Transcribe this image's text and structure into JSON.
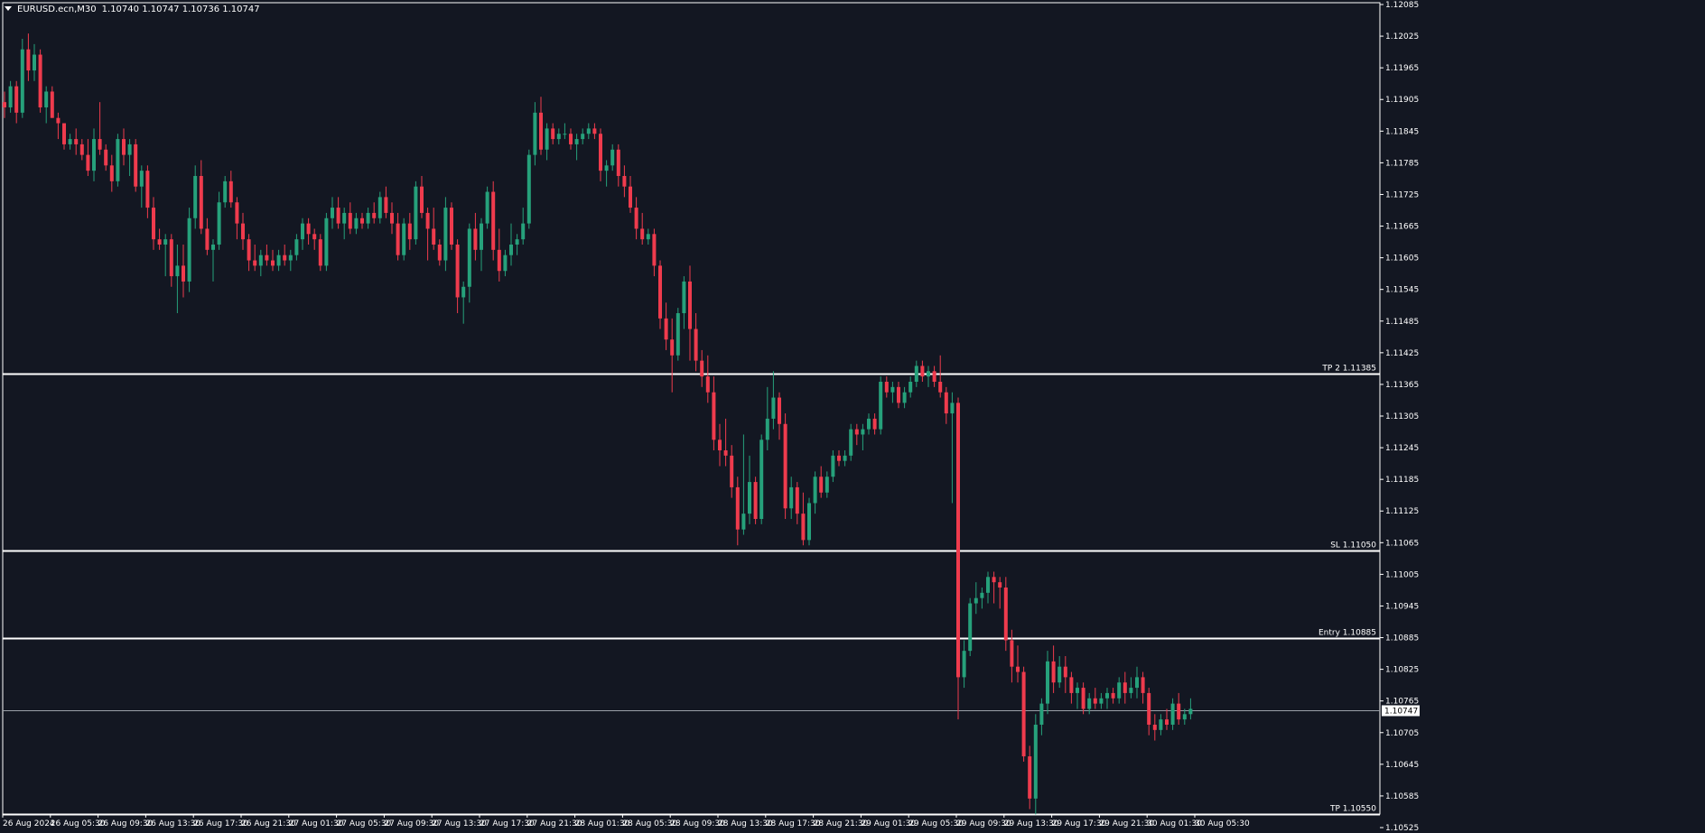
{
  "header": {
    "symbol": "EURUSD.ecn,M30",
    "ohlc": "1.10740 1.10747 1.10736 1.10747"
  },
  "colors": {
    "background": "#131722",
    "bull": "#26a17b",
    "bear": "#ef3b4d",
    "level_line": "#ffffff",
    "axis_text": "#ffffff",
    "price_tag_bg": "#ffffff",
    "price_tag_text": "#000000"
  },
  "chart_data": {
    "type": "candlestick",
    "title": "EURUSD.ecn,M30",
    "ylim": [
      1.10525,
      1.12085
    ],
    "y_ticks": [
      "1.12085",
      "1.12025",
      "1.11965",
      "1.11905",
      "1.11845",
      "1.11785",
      "1.11725",
      "1.11665",
      "1.11605",
      "1.11545",
      "1.11485",
      "1.11425",
      "1.11365",
      "1.11305",
      "1.11245",
      "1.11185",
      "1.11125",
      "1.11065",
      "1.11005",
      "1.10945",
      "1.10885",
      "1.10825",
      "1.10765",
      "1.10705",
      "1.10645",
      "1.10585",
      "1.10525"
    ],
    "x_ticks": [
      {
        "label": "26 Aug 2024",
        "bar": 0
      },
      {
        "label": "26 Aug 05:30",
        "bar": 8
      },
      {
        "label": "26 Aug 09:30",
        "bar": 16
      },
      {
        "label": "26 Aug 13:30",
        "bar": 24
      },
      {
        "label": "26 Aug 17:30",
        "bar": 32
      },
      {
        "label": "26 Aug 21:30",
        "bar": 40
      },
      {
        "label": "27 Aug 01:30",
        "bar": 48
      },
      {
        "label": "27 Aug 05:30",
        "bar": 56
      },
      {
        "label": "27 Aug 09:30",
        "bar": 64
      },
      {
        "label": "27 Aug 13:30",
        "bar": 72
      },
      {
        "label": "27 Aug 17:30",
        "bar": 80
      },
      {
        "label": "27 Aug 21:30",
        "bar": 88
      },
      {
        "label": "28 Aug 01:30",
        "bar": 96
      },
      {
        "label": "28 Aug 05:30",
        "bar": 104
      },
      {
        "label": "28 Aug 09:30",
        "bar": 112
      },
      {
        "label": "28 Aug 13:30",
        "bar": 120
      },
      {
        "label": "28 Aug 17:30",
        "bar": 128
      },
      {
        "label": "28 Aug 21:30",
        "bar": 136
      },
      {
        "label": "29 Aug 01:30",
        "bar": 144
      },
      {
        "label": "29 Aug 05:30",
        "bar": 152
      },
      {
        "label": "29 Aug 09:30",
        "bar": 160
      },
      {
        "label": "29 Aug 13:30",
        "bar": 168
      },
      {
        "label": "29 Aug 17:30",
        "bar": 176
      },
      {
        "label": "29 Aug 21:30",
        "bar": 184
      },
      {
        "label": "30 Aug 01:30",
        "bar": 192
      },
      {
        "label": "30 Aug 05:30",
        "bar": 200
      }
    ],
    "levels": [
      {
        "label": "TP 2 1.11385",
        "price": 1.11385
      },
      {
        "label": "SL 1.11050",
        "price": 1.1105
      },
      {
        "label": "Entry 1.10885",
        "price": 1.10885
      },
      {
        "label": "TP 1.10550",
        "price": 1.1055
      }
    ],
    "current_price": {
      "label": "1.10747",
      "price": 1.10747
    },
    "candles": [
      [
        1.119,
        1.1192,
        1.1187,
        1.1189
      ],
      [
        1.1189,
        1.1194,
        1.1188,
        1.1193
      ],
      [
        1.1193,
        1.1194,
        1.1186,
        1.1188
      ],
      [
        1.1188,
        1.1202,
        1.1187,
        1.12
      ],
      [
        1.12,
        1.1203,
        1.1194,
        1.1196
      ],
      [
        1.1196,
        1.1201,
        1.1194,
        1.1199
      ],
      [
        1.1199,
        1.12,
        1.1188,
        1.1189
      ],
      [
        1.1189,
        1.1193,
        1.1186,
        1.1192
      ],
      [
        1.1192,
        1.1193,
        1.1187,
        1.1187
      ],
      [
        1.1187,
        1.1188,
        1.1183,
        1.1186
      ],
      [
        1.1186,
        1.1186,
        1.1181,
        1.1182
      ],
      [
        1.1182,
        1.1184,
        1.1181,
        1.1183
      ],
      [
        1.1183,
        1.1185,
        1.118,
        1.1182
      ],
      [
        1.1182,
        1.1183,
        1.1179,
        1.118
      ],
      [
        1.118,
        1.1183,
        1.1176,
        1.1177
      ],
      [
        1.1177,
        1.1185,
        1.1175,
        1.1183
      ],
      [
        1.1183,
        1.119,
        1.118,
        1.1181
      ],
      [
        1.1181,
        1.1182,
        1.1177,
        1.1178
      ],
      [
        1.1178,
        1.118,
        1.1173,
        1.1175
      ],
      [
        1.1175,
        1.1184,
        1.1174,
        1.1183
      ],
      [
        1.1183,
        1.1185,
        1.1178,
        1.118
      ],
      [
        1.118,
        1.1183,
        1.1176,
        1.1182
      ],
      [
        1.1182,
        1.1183,
        1.1173,
        1.1174
      ],
      [
        1.1174,
        1.1178,
        1.117,
        1.1177
      ],
      [
        1.1177,
        1.1178,
        1.1168,
        1.117
      ],
      [
        1.117,
        1.1172,
        1.1162,
        1.1164
      ],
      [
        1.1164,
        1.1166,
        1.1162,
        1.1163
      ],
      [
        1.1163,
        1.1165,
        1.1157,
        1.1164
      ],
      [
        1.1164,
        1.1165,
        1.1155,
        1.1157
      ],
      [
        1.1157,
        1.1163,
        1.115,
        1.1159
      ],
      [
        1.1159,
        1.1163,
        1.1153,
        1.1156
      ],
      [
        1.1156,
        1.117,
        1.1154,
        1.1168
      ],
      [
        1.1168,
        1.1178,
        1.1166,
        1.1176
      ],
      [
        1.1176,
        1.1179,
        1.1165,
        1.1166
      ],
      [
        1.1166,
        1.1168,
        1.1161,
        1.1162
      ],
      [
        1.1162,
        1.1164,
        1.1156,
        1.1163
      ],
      [
        1.1163,
        1.1173,
        1.1162,
        1.1171
      ],
      [
        1.1171,
        1.1176,
        1.117,
        1.1175
      ],
      [
        1.1175,
        1.1177,
        1.117,
        1.1171
      ],
      [
        1.1171,
        1.1172,
        1.1164,
        1.1167
      ],
      [
        1.1167,
        1.1169,
        1.1162,
        1.1164
      ],
      [
        1.1164,
        1.1165,
        1.1158,
        1.116
      ],
      [
        1.116,
        1.1163,
        1.1158,
        1.1159
      ],
      [
        1.1159,
        1.1162,
        1.1157,
        1.1161
      ],
      [
        1.1161,
        1.1163,
        1.1159,
        1.116
      ],
      [
        1.116,
        1.1162,
        1.1158,
        1.1159
      ],
      [
        1.1159,
        1.1162,
        1.1158,
        1.1161
      ],
      [
        1.1161,
        1.1163,
        1.1159,
        1.116
      ],
      [
        1.116,
        1.1162,
        1.1158,
        1.1161
      ],
      [
        1.1161,
        1.1165,
        1.116,
        1.1164
      ],
      [
        1.1164,
        1.1168,
        1.1162,
        1.1167
      ],
      [
        1.1167,
        1.1168,
        1.1163,
        1.1165
      ],
      [
        1.1165,
        1.1166,
        1.1162,
        1.1164
      ],
      [
        1.1164,
        1.1165,
        1.1158,
        1.1159
      ],
      [
        1.1159,
        1.1169,
        1.1158,
        1.1168
      ],
      [
        1.1168,
        1.1172,
        1.1166,
        1.117
      ],
      [
        1.117,
        1.1172,
        1.1166,
        1.1167
      ],
      [
        1.1167,
        1.117,
        1.1164,
        1.1169
      ],
      [
        1.1169,
        1.1171,
        1.1165,
        1.1166
      ],
      [
        1.1166,
        1.1169,
        1.1165,
        1.1168
      ],
      [
        1.1168,
        1.1169,
        1.1166,
        1.1167
      ],
      [
        1.1167,
        1.117,
        1.1166,
        1.1169
      ],
      [
        1.1169,
        1.1171,
        1.1167,
        1.1168
      ],
      [
        1.1168,
        1.1173,
        1.1167,
        1.1172
      ],
      [
        1.1172,
        1.1174,
        1.1168,
        1.1169
      ],
      [
        1.1169,
        1.1171,
        1.1165,
        1.1167
      ],
      [
        1.1167,
        1.1169,
        1.116,
        1.1161
      ],
      [
        1.1161,
        1.1168,
        1.116,
        1.1167
      ],
      [
        1.1167,
        1.1169,
        1.1162,
        1.1164
      ],
      [
        1.1164,
        1.1175,
        1.1163,
        1.1174
      ],
      [
        1.1174,
        1.1176,
        1.1168,
        1.1169
      ],
      [
        1.1169,
        1.117,
        1.116,
        1.1166
      ],
      [
        1.1166,
        1.117,
        1.1162,
        1.1163
      ],
      [
        1.1163,
        1.1164,
        1.1159,
        1.116
      ],
      [
        1.116,
        1.1172,
        1.1158,
        1.117
      ],
      [
        1.117,
        1.1171,
        1.1162,
        1.1163
      ],
      [
        1.1163,
        1.1164,
        1.115,
        1.1153
      ],
      [
        1.1153,
        1.1156,
        1.1148,
        1.1155
      ],
      [
        1.1155,
        1.1167,
        1.1152,
        1.1166
      ],
      [
        1.1166,
        1.1169,
        1.116,
        1.1162
      ],
      [
        1.1162,
        1.1168,
        1.1158,
        1.1167
      ],
      [
        1.1167,
        1.1174,
        1.1166,
        1.1173
      ],
      [
        1.1173,
        1.1175,
        1.116,
        1.1162
      ],
      [
        1.1162,
        1.1166,
        1.1156,
        1.1158
      ],
      [
        1.1158,
        1.1162,
        1.1157,
        1.1161
      ],
      [
        1.1161,
        1.1167,
        1.1159,
        1.1163
      ],
      [
        1.1163,
        1.1165,
        1.1161,
        1.1164
      ],
      [
        1.1164,
        1.117,
        1.1163,
        1.1167
      ],
      [
        1.1167,
        1.1181,
        1.1166,
        1.118
      ],
      [
        1.118,
        1.119,
        1.1178,
        1.1188
      ],
      [
        1.1188,
        1.1191,
        1.118,
        1.1181
      ],
      [
        1.1181,
        1.1186,
        1.1179,
        1.1185
      ],
      [
        1.1185,
        1.1186,
        1.1182,
        1.1183
      ],
      [
        1.1183,
        1.1185,
        1.1182,
        1.1184
      ],
      [
        1.1184,
        1.1186,
        1.1183,
        1.1184
      ],
      [
        1.1184,
        1.1185,
        1.1181,
        1.1182
      ],
      [
        1.1182,
        1.1184,
        1.1179,
        1.1183
      ],
      [
        1.1183,
        1.1185,
        1.1182,
        1.1184
      ],
      [
        1.1184,
        1.1186,
        1.1183,
        1.1185
      ],
      [
        1.1185,
        1.1186,
        1.1183,
        1.1184
      ],
      [
        1.1184,
        1.1185,
        1.1175,
        1.1177
      ],
      [
        1.1177,
        1.1179,
        1.1174,
        1.1178
      ],
      [
        1.1178,
        1.1182,
        1.1177,
        1.1181
      ],
      [
        1.1181,
        1.1182,
        1.1174,
        1.1176
      ],
      [
        1.1176,
        1.1178,
        1.1172,
        1.1174
      ],
      [
        1.1174,
        1.1176,
        1.1169,
        1.117
      ],
      [
        1.117,
        1.1172,
        1.1164,
        1.1166
      ],
      [
        1.1166,
        1.1169,
        1.1163,
        1.1164
      ],
      [
        1.1164,
        1.1166,
        1.1163,
        1.1165
      ],
      [
        1.1165,
        1.1166,
        1.1157,
        1.1159
      ],
      [
        1.1159,
        1.116,
        1.1147,
        1.1149
      ],
      [
        1.1149,
        1.1152,
        1.1143,
        1.1145
      ],
      [
        1.1145,
        1.1149,
        1.1135,
        1.1142
      ],
      [
        1.1142,
        1.1151,
        1.1141,
        1.115
      ],
      [
        1.115,
        1.1157,
        1.1147,
        1.1156
      ],
      [
        1.1156,
        1.1159,
        1.1141,
        1.1147
      ],
      [
        1.1147,
        1.115,
        1.1139,
        1.1141
      ],
      [
        1.1141,
        1.1143,
        1.1136,
        1.1138
      ],
      [
        1.1138,
        1.1142,
        1.1133,
        1.1135
      ],
      [
        1.1135,
        1.1138,
        1.1124,
        1.1126
      ],
      [
        1.1126,
        1.1129,
        1.1121,
        1.1124
      ],
      [
        1.1124,
        1.113,
        1.1121,
        1.1123
      ],
      [
        1.1123,
        1.1125,
        1.1115,
        1.1117
      ],
      [
        1.1117,
        1.1119,
        1.1106,
        1.1109
      ],
      [
        1.1109,
        1.1127,
        1.1108,
        1.1112
      ],
      [
        1.1112,
        1.1123,
        1.111,
        1.1118
      ],
      [
        1.1118,
        1.1119,
        1.111,
        1.1111
      ],
      [
        1.1111,
        1.1127,
        1.111,
        1.1126
      ],
      [
        1.1126,
        1.1136,
        1.1124,
        1.113
      ],
      [
        1.113,
        1.1139,
        1.1128,
        1.1134
      ],
      [
        1.1134,
        1.1135,
        1.1126,
        1.1129
      ],
      [
        1.1129,
        1.1131,
        1.1111,
        1.1113
      ],
      [
        1.1113,
        1.1119,
        1.1111,
        1.1117
      ],
      [
        1.1117,
        1.1118,
        1.111,
        1.1112
      ],
      [
        1.1112,
        1.1116,
        1.1106,
        1.1107
      ],
      [
        1.1107,
        1.1115,
        1.1106,
        1.1114
      ],
      [
        1.1114,
        1.112,
        1.1112,
        1.1119
      ],
      [
        1.1119,
        1.1121,
        1.1115,
        1.1116
      ],
      [
        1.1116,
        1.112,
        1.1115,
        1.1119
      ],
      [
        1.1119,
        1.1124,
        1.1118,
        1.1123
      ],
      [
        1.1123,
        1.1124,
        1.1121,
        1.1122
      ],
      [
        1.1122,
        1.1124,
        1.1121,
        1.1123
      ],
      [
        1.1123,
        1.1129,
        1.1122,
        1.1128
      ],
      [
        1.1128,
        1.1129,
        1.1125,
        1.1127
      ],
      [
        1.1127,
        1.1129,
        1.1124,
        1.1128
      ],
      [
        1.1128,
        1.1131,
        1.1127,
        1.113
      ],
      [
        1.113,
        1.1131,
        1.1127,
        1.1128
      ],
      [
        1.1128,
        1.1138,
        1.1127,
        1.1137
      ],
      [
        1.1137,
        1.1138,
        1.1134,
        1.1135
      ],
      [
        1.1135,
        1.1137,
        1.1133,
        1.1136
      ],
      [
        1.1136,
        1.1137,
        1.1132,
        1.1133
      ],
      [
        1.1133,
        1.1136,
        1.1132,
        1.1135
      ],
      [
        1.1135,
        1.1138,
        1.1134,
        1.1137
      ],
      [
        1.1137,
        1.1141,
        1.1136,
        1.114
      ],
      [
        1.114,
        1.1141,
        1.1137,
        1.1138
      ],
      [
        1.1138,
        1.114,
        1.1136,
        1.1139
      ],
      [
        1.1139,
        1.114,
        1.1136,
        1.1137
      ],
      [
        1.1137,
        1.1142,
        1.1134,
        1.1135
      ],
      [
        1.1135,
        1.1136,
        1.1129,
        1.1131
      ],
      [
        1.1131,
        1.1135,
        1.1114,
        1.1133
      ],
      [
        1.1133,
        1.1134,
        1.1073,
        1.1081
      ],
      [
        1.1081,
        1.1088,
        1.1079,
        1.1086
      ],
      [
        1.1086,
        1.1096,
        1.1085,
        1.1095
      ],
      [
        1.1095,
        1.1099,
        1.1093,
        1.1096
      ],
      [
        1.1096,
        1.1098,
        1.1094,
        1.1097
      ],
      [
        1.1097,
        1.1101,
        1.1095,
        1.11
      ],
      [
        1.11,
        1.1101,
        1.1095,
        1.1099
      ],
      [
        1.1099,
        1.11,
        1.1094,
        1.1098
      ],
      [
        1.1098,
        1.11,
        1.1086,
        1.1088
      ],
      [
        1.1088,
        1.109,
        1.108,
        1.1083
      ],
      [
        1.1083,
        1.1087,
        1.108,
        1.1082
      ],
      [
        1.1082,
        1.1083,
        1.1065,
        1.1066
      ],
      [
        1.1066,
        1.1068,
        1.1056,
        1.1058
      ],
      [
        1.1058,
        1.1074,
        1.1055,
        1.1072
      ],
      [
        1.1072,
        1.1077,
        1.107,
        1.1076
      ],
      [
        1.1076,
        1.1086,
        1.1074,
        1.1084
      ],
      [
        1.1084,
        1.1087,
        1.1078,
        1.108
      ],
      [
        1.108,
        1.1085,
        1.1079,
        1.1083
      ],
      [
        1.1083,
        1.1085,
        1.1078,
        1.1081
      ],
      [
        1.1081,
        1.1082,
        1.1076,
        1.1078
      ],
      [
        1.1078,
        1.108,
        1.1075,
        1.1079
      ],
      [
        1.1079,
        1.108,
        1.1074,
        1.1075
      ],
      [
        1.1075,
        1.1078,
        1.1074,
        1.1077
      ],
      [
        1.1077,
        1.1079,
        1.1075,
        1.1076
      ],
      [
        1.1076,
        1.1078,
        1.1075,
        1.1077
      ],
      [
        1.1077,
        1.1079,
        1.1075,
        1.1078
      ],
      [
        1.1078,
        1.1079,
        1.1076,
        1.1077
      ],
      [
        1.1077,
        1.1081,
        1.1076,
        1.108
      ],
      [
        1.108,
        1.1082,
        1.1076,
        1.1078
      ],
      [
        1.1078,
        1.1081,
        1.1077,
        1.1079
      ],
      [
        1.1079,
        1.1083,
        1.1077,
        1.1081
      ],
      [
        1.1081,
        1.1082,
        1.1076,
        1.1078
      ],
      [
        1.1078,
        1.1079,
        1.107,
        1.1072
      ],
      [
        1.1072,
        1.1074,
        1.1069,
        1.1071
      ],
      [
        1.1071,
        1.1074,
        1.107,
        1.1073
      ],
      [
        1.1073,
        1.1075,
        1.1071,
        1.1072
      ],
      [
        1.1072,
        1.1077,
        1.1071,
        1.1076
      ],
      [
        1.1076,
        1.1078,
        1.1072,
        1.1073
      ],
      [
        1.1073,
        1.1075,
        1.1072,
        1.1074
      ],
      [
        1.1074,
        1.1077,
        1.1073,
        1.1075
      ]
    ]
  }
}
